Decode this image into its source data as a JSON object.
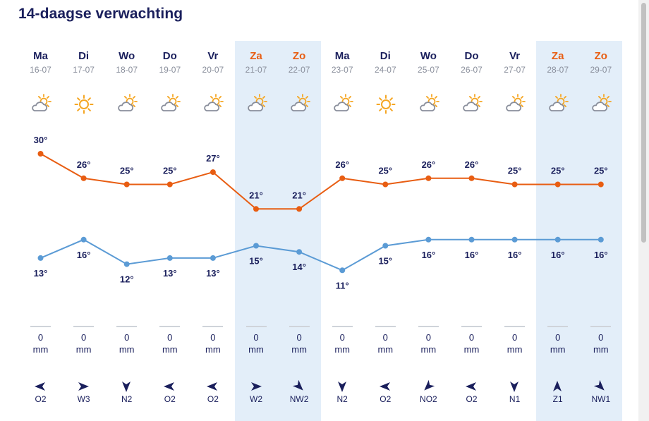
{
  "title": "14-daagse verwachting",
  "colors": {
    "max_line": "#e85d12",
    "min_line": "#5b9bd5",
    "weekend_band": "#e3eef9",
    "weekend_text": "#e85d12",
    "text": "#1a1f5c",
    "sun": "#f5a623",
    "cloud": "#8a8f9c"
  },
  "rain_unit": "mm",
  "days": [
    {
      "name": "Ma",
      "date": "16-07",
      "weekend": false,
      "icon": "partly-cloudy-icon",
      "max": "30°",
      "min": "13°",
      "rain": "0",
      "wind": "O2",
      "wind_icon": "wind-arrow-west-icon"
    },
    {
      "name": "Di",
      "date": "17-07",
      "weekend": false,
      "icon": "sunny-icon",
      "max": "26°",
      "min": "16°",
      "rain": "0",
      "wind": "W3",
      "wind_icon": "wind-arrow-east-icon"
    },
    {
      "name": "Wo",
      "date": "18-07",
      "weekend": false,
      "icon": "partly-cloudy-icon",
      "max": "25°",
      "min": "12°",
      "rain": "0",
      "wind": "N2",
      "wind_icon": "wind-arrow-south-icon"
    },
    {
      "name": "Do",
      "date": "19-07",
      "weekend": false,
      "icon": "partly-cloudy-icon",
      "max": "25°",
      "min": "13°",
      "rain": "0",
      "wind": "O2",
      "wind_icon": "wind-arrow-west-icon"
    },
    {
      "name": "Vr",
      "date": "20-07",
      "weekend": false,
      "icon": "partly-cloudy-icon",
      "max": "27°",
      "min": "13°",
      "rain": "0",
      "wind": "O2",
      "wind_icon": "wind-arrow-west-icon"
    },
    {
      "name": "Za",
      "date": "21-07",
      "weekend": true,
      "icon": "partly-cloudy-icon",
      "max": "21°",
      "min": "15°",
      "rain": "0",
      "wind": "W2",
      "wind_icon": "wind-arrow-east-icon"
    },
    {
      "name": "Zo",
      "date": "22-07",
      "weekend": true,
      "icon": "partly-cloudy-icon",
      "max": "21°",
      "min": "14°",
      "rain": "0",
      "wind": "NW2",
      "wind_icon": "wind-arrow-southeast-icon"
    },
    {
      "name": "Ma",
      "date": "23-07",
      "weekend": false,
      "icon": "partly-cloudy-icon",
      "max": "26°",
      "min": "11°",
      "rain": "0",
      "wind": "N2",
      "wind_icon": "wind-arrow-south-icon"
    },
    {
      "name": "Di",
      "date": "24-07",
      "weekend": false,
      "icon": "sunny-icon",
      "max": "25°",
      "min": "15°",
      "rain": "0",
      "wind": "O2",
      "wind_icon": "wind-arrow-west-icon"
    },
    {
      "name": "Wo",
      "date": "25-07",
      "weekend": false,
      "icon": "partly-cloudy-icon",
      "max": "26°",
      "min": "16°",
      "rain": "0",
      "wind": "NO2",
      "wind_icon": "wind-arrow-southwest-icon"
    },
    {
      "name": "Do",
      "date": "26-07",
      "weekend": false,
      "icon": "partly-cloudy-icon",
      "max": "26°",
      "min": "16°",
      "rain": "0",
      "wind": "O2",
      "wind_icon": "wind-arrow-west-icon"
    },
    {
      "name": "Vr",
      "date": "27-07",
      "weekend": false,
      "icon": "partly-cloudy-icon",
      "max": "25°",
      "min": "16°",
      "rain": "0",
      "wind": "N1",
      "wind_icon": "wind-arrow-south-icon"
    },
    {
      "name": "Za",
      "date": "28-07",
      "weekend": true,
      "icon": "partly-cloudy-icon",
      "max": "25°",
      "min": "16°",
      "rain": "0",
      "wind": "Z1",
      "wind_icon": "wind-arrow-north-icon"
    },
    {
      "name": "Zo",
      "date": "29-07",
      "weekend": true,
      "icon": "partly-cloudy-icon",
      "max": "25°",
      "min": "16°",
      "rain": "0",
      "wind": "NW1",
      "wind_icon": "wind-arrow-southeast-icon"
    }
  ],
  "chart_data": {
    "type": "line",
    "x": [
      "16-07",
      "17-07",
      "18-07",
      "19-07",
      "20-07",
      "21-07",
      "22-07",
      "23-07",
      "24-07",
      "25-07",
      "26-07",
      "27-07",
      "28-07",
      "29-07"
    ],
    "series": [
      {
        "values": [
          30,
          26,
          25,
          25,
          27,
          21,
          21,
          26,
          25,
          26,
          26,
          25,
          25,
          25
        ]
      },
      {
        "values": [
          13,
          16,
          12,
          13,
          13,
          15,
          14,
          11,
          15,
          16,
          16,
          16,
          16,
          16
        ]
      }
    ],
    "grid": false
  }
}
